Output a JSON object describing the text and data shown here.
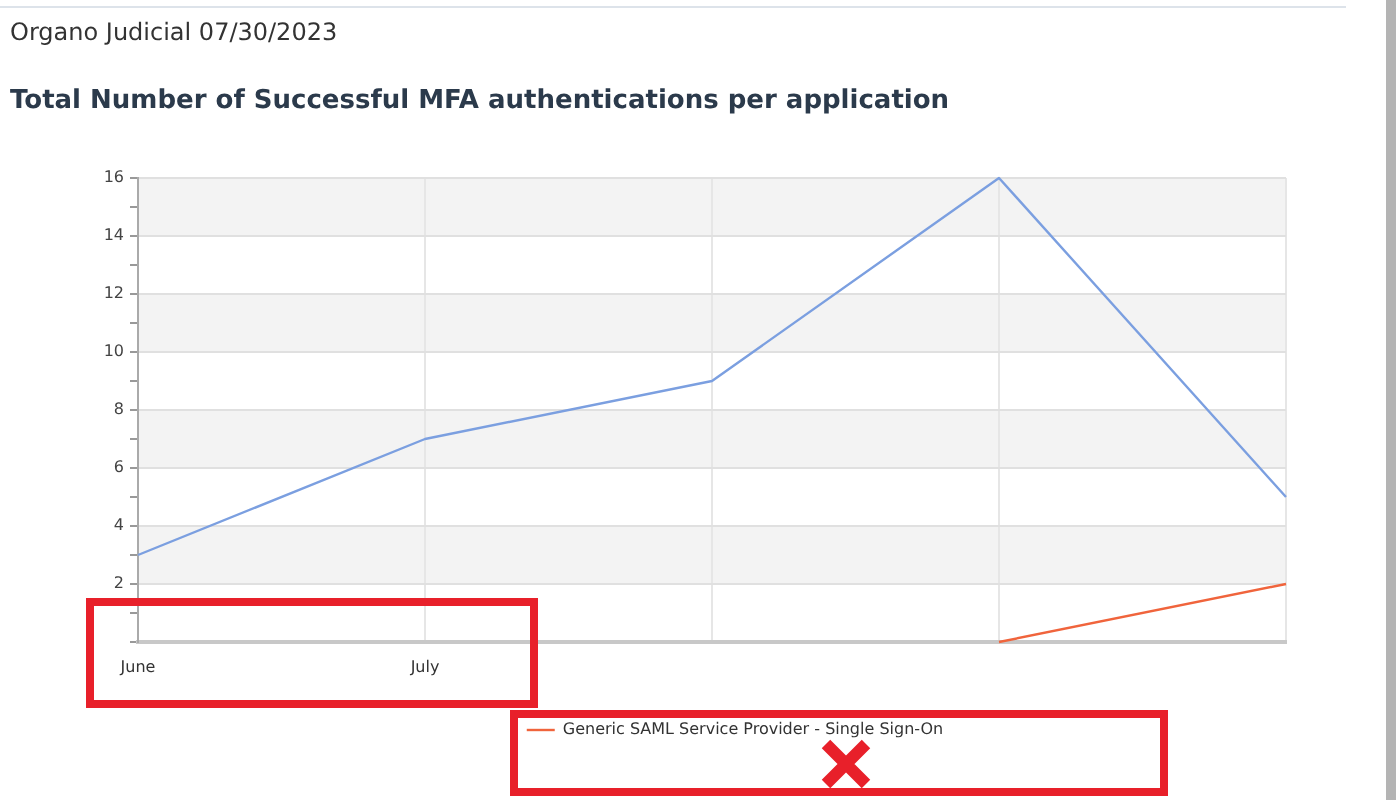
{
  "chart_data": {
    "type": "line",
    "title": "Total Number of Successful MFA authentications per application",
    "subtitle": "Organo Judicial 07/30/2023",
    "categories": [
      "June",
      "July",
      null,
      null,
      null
    ],
    "series": [
      {
        "color": "#7b9fe0",
        "values": [
          3,
          7,
          9,
          16,
          5
        ]
      },
      {
        "name": "Generic SAML Service Provider - Single Sign-On",
        "color": "#f0643c",
        "values": [
          null,
          null,
          null,
          0,
          2
        ]
      }
    ],
    "ylim": [
      0,
      16
    ],
    "yticks": [
      {
        "value": 0,
        "label": null
      },
      {
        "value": 1,
        "label": null
      },
      2,
      {
        "value": 3,
        "label": null
      },
      4,
      {
        "value": 5,
        "label": null
      },
      6,
      {
        "value": 7,
        "label": null
      },
      8,
      {
        "value": 9,
        "label": null
      },
      10,
      {
        "value": 11,
        "label": null
      },
      12,
      {
        "value": 13,
        "label": null
      },
      14,
      {
        "value": 15,
        "label": null
      },
      16
    ],
    "grid": true,
    "legend": "bottom",
    "marker": "none",
    "line_style": "solid"
  }
}
